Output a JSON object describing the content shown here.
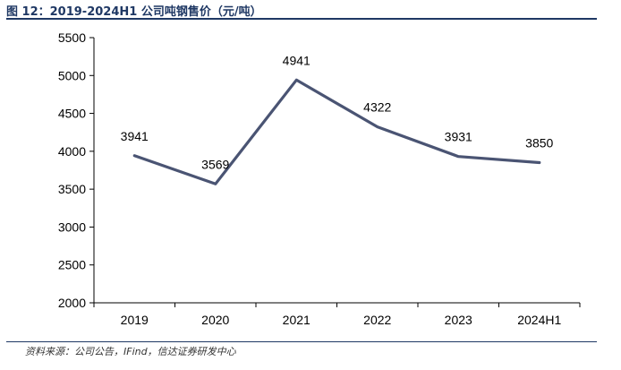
{
  "header": {
    "title": "图 12：2019-2024H1 公司吨钢售价（元/吨）"
  },
  "footer": {
    "source": "资料来源：公司公告，IFind，信达证券研发中心"
  },
  "colors": {
    "line": "#4a5473",
    "title": "#1f3864",
    "axis": "#000000"
  },
  "chart_data": {
    "type": "line",
    "categories": [
      "2019",
      "2020",
      "2021",
      "2022",
      "2023",
      "2024H1"
    ],
    "series": [
      {
        "values": [
          3941,
          3569,
          4941,
          4322,
          3931,
          3850
        ]
      }
    ],
    "data_labels": [
      "3941",
      "3569",
      "4941",
      "4322",
      "3931",
      "3850"
    ],
    "ylim": [
      2000,
      5500
    ],
    "yticks": [
      "2000",
      "2500",
      "3000",
      "3500",
      "4000",
      "4500",
      "5000",
      "5500"
    ],
    "grid": false,
    "legend": "none"
  }
}
